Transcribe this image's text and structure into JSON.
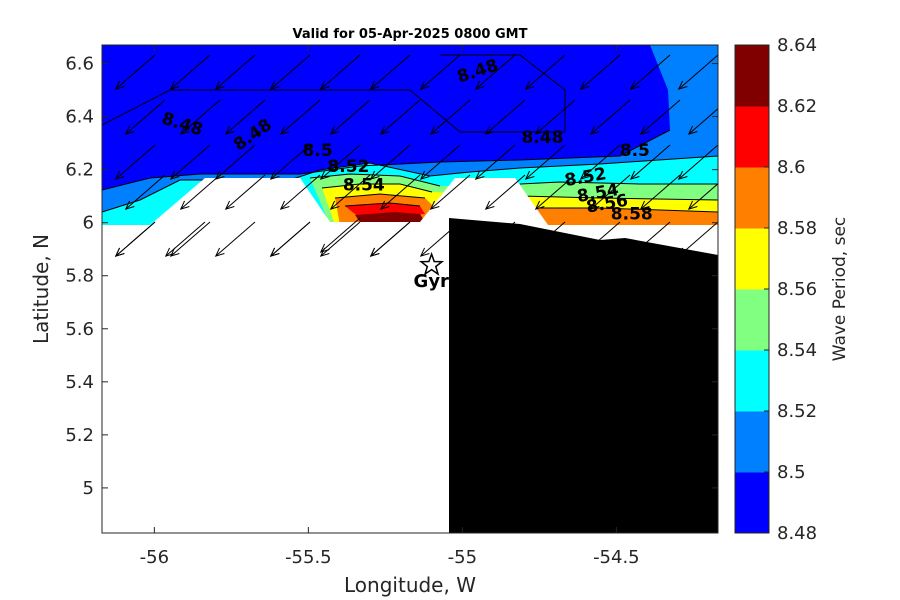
{
  "chart_data": {
    "type": "contour",
    "title": "Valid for 05-Apr-2025 0800 GMT",
    "xlabel": "Longitude, W",
    "ylabel": "Latitude, N",
    "xlim": [
      -56.17,
      -54.17
    ],
    "ylim": [
      4.83,
      6.67
    ],
    "x_ticks": [
      -56,
      -55.5,
      -55,
      -54.5
    ],
    "x_tick_labels": [
      "-56",
      "-55.5",
      "-55",
      "-54.5"
    ],
    "y_ticks": [
      5,
      5.2,
      5.4,
      5.6,
      5.8,
      6,
      6.2,
      6.4,
      6.6
    ],
    "y_tick_labels": [
      "5",
      "5.2",
      "5.4",
      "5.6",
      "5.8",
      "6",
      "6.2",
      "6.4",
      "6.6"
    ],
    "colorbar": {
      "label": "Wave Period, sec",
      "levels": [
        8.48,
        8.5,
        8.52,
        8.54,
        8.56,
        8.58,
        8.6,
        8.62,
        8.64
      ],
      "tick_labels": [
        "8.48",
        "8.5",
        "8.52",
        "8.54",
        "8.56",
        "8.58",
        "8.6",
        "8.62",
        "8.64"
      ],
      "colors": [
        "#0000ff",
        "#0080ff",
        "#00ffff",
        "#80ff80",
        "#ffff00",
        "#ff8000",
        "#ff0000",
        "#800000"
      ]
    },
    "contour_labels": [
      {
        "text": "8.48",
        "lon": -54.95,
        "lat": 6.57,
        "angle": -18
      },
      {
        "text": "8.48",
        "lon": -55.91,
        "lat": 6.37,
        "angle": 18
      },
      {
        "text": "8.48",
        "lon": -55.68,
        "lat": 6.33,
        "angle": -35
      },
      {
        "text": "8.48",
        "lon": -54.74,
        "lat": 6.32,
        "angle": 0
      },
      {
        "text": "8.5",
        "lon": -55.47,
        "lat": 6.27,
        "angle": 0
      },
      {
        "text": "8.5",
        "lon": -54.44,
        "lat": 6.27,
        "angle": 0
      },
      {
        "text": "8.52",
        "lon": -55.37,
        "lat": 6.21,
        "angle": 0
      },
      {
        "text": "8.52",
        "lon": -54.6,
        "lat": 6.17,
        "angle": -10
      },
      {
        "text": "8.54",
        "lon": -55.32,
        "lat": 6.14,
        "angle": 0
      },
      {
        "text": "8.54",
        "lon": -54.56,
        "lat": 6.11,
        "angle": -10
      },
      {
        "text": "8.56",
        "lon": -54.53,
        "lat": 6.07,
        "angle": -10
      },
      {
        "text": "8.58",
        "lon": -54.45,
        "lat": 6.03,
        "angle": 0
      }
    ],
    "station": {
      "label": "Gyr",
      "lon": -55.1,
      "lat": 5.84
    },
    "wave_direction": "from northeast toward southwest"
  }
}
